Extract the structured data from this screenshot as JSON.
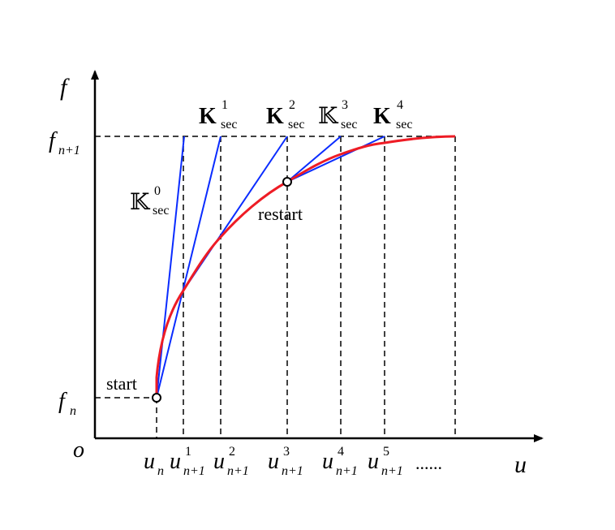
{
  "colors": {
    "curve": "#ee1c25",
    "secant": "#0a2cff",
    "axes": "#000000"
  },
  "axes": {
    "y_label": "f",
    "x_label": "u",
    "origin": "o"
  },
  "y_ticks": {
    "fn": {
      "base": "f",
      "sub": "n"
    },
    "fn1": {
      "base": "f",
      "sub": "n+1"
    }
  },
  "x_ticks": [
    {
      "base": "u",
      "sub": "n",
      "sup": ""
    },
    {
      "base": "u",
      "sub": "n+1",
      "sup": "1"
    },
    {
      "base": "u",
      "sub": "n+1",
      "sup": "2"
    },
    {
      "base": "u",
      "sub": "n+1",
      "sup": "3"
    },
    {
      "base": "u",
      "sub": "n+1",
      "sup": "4"
    },
    {
      "base": "u",
      "sub": "n+1",
      "sup": "5"
    }
  ],
  "ellipsis": "......",
  "secants": [
    {
      "symbol": "𝕂",
      "sub": "sec",
      "sup": "0"
    },
    {
      "symbol": "K",
      "sub": "sec",
      "sup": "1"
    },
    {
      "symbol": "K",
      "sub": "sec",
      "sup": "2"
    },
    {
      "symbol": "𝕂",
      "sub": "sec",
      "sup": "3"
    },
    {
      "symbol": "K",
      "sub": "sec",
      "sup": "4"
    }
  ],
  "annotations": {
    "start": "start",
    "restart": "restart"
  }
}
